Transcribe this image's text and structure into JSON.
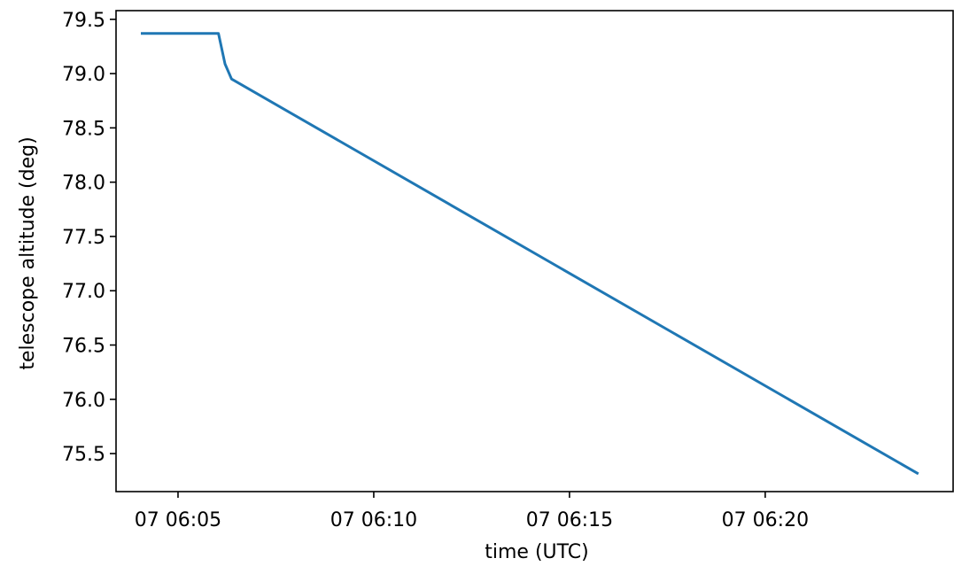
{
  "chart_data": {
    "type": "line",
    "title": "",
    "xlabel": "time (UTC)",
    "ylabel": "telescope altitude (deg)",
    "x_tick_labels": [
      "07 06:05",
      "07 06:10",
      "07 06:15",
      "07 06:20"
    ],
    "y_tick_labels": [
      "75.5",
      "76.0",
      "76.5",
      "77.0",
      "77.5",
      "78.0",
      "78.5",
      "79.0",
      "79.5"
    ],
    "xlim": [
      "07 06:03:25",
      "07 06:24:48"
    ],
    "ylim": [
      75.15,
      79.58
    ],
    "grid": false,
    "series": [
      {
        "color": "#1f77b4",
        "x": [
          "07 06:04:05",
          "07 06:05:30",
          "07 06:06:02",
          "07 06:06:12",
          "07 06:06:22",
          "07 06:23:53"
        ],
        "y": [
          79.37,
          79.37,
          79.37,
          79.09,
          78.95,
          75.32
        ]
      }
    ]
  }
}
